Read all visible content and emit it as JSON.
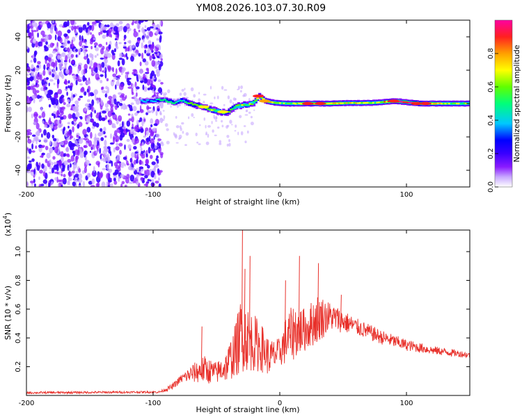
{
  "title": "YM08.2026.103.07.30.R09",
  "colors": {
    "axis": "#000000",
    "snr_line": "#e8302a",
    "colormap": [
      "#ffffff",
      "#c8a8ff",
      "#8a1bff",
      "#3a00ff",
      "#0000ff",
      "#00c8ff",
      "#00ff7a",
      "#60ff00",
      "#ffff00",
      "#ffa000",
      "#ff2020",
      "#ff00a0"
    ]
  },
  "chart_data": [
    {
      "id": "spectrogram",
      "type": "heatmap",
      "xlabel": "Height of straight line (km)",
      "ylabel": "Frequency (Hz)",
      "xlim": [
        -200,
        150
      ],
      "ylim": [
        -50,
        50
      ],
      "xticks": [
        -200,
        -100,
        0,
        100
      ],
      "yticks": [
        -40,
        -20,
        0,
        20,
        40
      ],
      "x_tick_labels": [
        "-200",
        "-100",
        "0",
        "100"
      ],
      "y_tick_labels": [
        "-40",
        "-20",
        "0",
        "20",
        "40"
      ],
      "noise_region_x": [
        -200,
        -93
      ],
      "ridge": [
        {
          "x": -110,
          "f": 1.5,
          "amp": 0.42
        },
        {
          "x": -100,
          "f": 1.8,
          "amp": 0.46
        },
        {
          "x": -92,
          "f": 2.2,
          "amp": 0.52
        },
        {
          "x": -85,
          "f": 0.5,
          "amp": 0.55
        },
        {
          "x": -78,
          "f": 2.0,
          "amp": 0.56
        },
        {
          "x": -72,
          "f": 0.0,
          "amp": 0.6
        },
        {
          "x": -64,
          "f": -1.5,
          "amp": 0.58
        },
        {
          "x": -56,
          "f": -3.5,
          "amp": 0.6
        },
        {
          "x": -48,
          "f": -5.0,
          "amp": 0.62
        },
        {
          "x": -42,
          "f": -5.5,
          "amp": 0.58
        },
        {
          "x": -37,
          "f": -2.0,
          "amp": 0.6
        },
        {
          "x": -30,
          "f": -1.0,
          "amp": 0.62
        },
        {
          "x": -22,
          "f": 0.0,
          "amp": 0.64
        },
        {
          "x": -17,
          "f": 4.5,
          "amp": 0.7
        },
        {
          "x": -12,
          "f": 1.5,
          "amp": 0.66
        },
        {
          "x": -5,
          "f": 0.5,
          "amp": 0.7
        },
        {
          "x": 5,
          "f": 0.0,
          "amp": 0.6
        },
        {
          "x": 20,
          "f": 0.0,
          "amp": 0.82
        },
        {
          "x": 35,
          "f": 0.0,
          "amp": 0.84
        },
        {
          "x": 55,
          "f": 0.3,
          "amp": 0.7
        },
        {
          "x": 75,
          "f": 0.5,
          "amp": 0.66
        },
        {
          "x": 90,
          "f": 1.5,
          "amp": 0.88
        },
        {
          "x": 110,
          "f": 0.0,
          "amp": 0.9
        },
        {
          "x": 130,
          "f": 0.0,
          "amp": 0.68
        },
        {
          "x": 150,
          "f": 0.0,
          "amp": 0.6
        }
      ]
    },
    {
      "id": "colorbar",
      "type": "colorbar",
      "label": "Normalized spectral amplitude",
      "range": [
        0.0,
        1.0
      ],
      "ticks": [
        0.0,
        0.2,
        0.4,
        0.6,
        0.8
      ],
      "tick_labels": [
        "0.0",
        "0.2",
        "0.4",
        "0.6",
        "0.8"
      ]
    },
    {
      "id": "snr",
      "type": "line",
      "xlabel": "Height of straight line (km)",
      "ylabel": "SNR (10 * v/v)",
      "y_multiplier_label": "(x10",
      "y_multiplier_exp": "4",
      "y_multiplier_close": ")",
      "xlim": [
        -200,
        150
      ],
      "ylim": [
        0,
        1.15
      ],
      "xticks": [
        -200,
        -100,
        0,
        100
      ],
      "yticks": [
        0.2,
        0.4,
        0.6,
        0.8,
        1.0
      ],
      "x_tick_labels": [
        "-200",
        "-100",
        "0",
        "100"
      ],
      "y_tick_labels": [
        "0.2",
        "0.4",
        "0.6",
        "0.8",
        "1.0"
      ],
      "envelope": [
        {
          "x": -200,
          "base": 0.015,
          "amp": 0.015
        },
        {
          "x": -95,
          "base": 0.02,
          "amp": 0.015
        },
        {
          "x": -85,
          "base": 0.05,
          "amp": 0.04
        },
        {
          "x": -78,
          "base": 0.1,
          "amp": 0.06
        },
        {
          "x": -70,
          "base": 0.12,
          "amp": 0.12
        },
        {
          "x": -60,
          "base": 0.13,
          "amp": 0.2
        },
        {
          "x": -50,
          "base": 0.12,
          "amp": 0.15
        },
        {
          "x": -42,
          "base": 0.15,
          "amp": 0.22
        },
        {
          "x": -35,
          "base": 0.22,
          "amp": 0.38
        },
        {
          "x": -30,
          "base": 0.3,
          "amp": 0.55
        },
        {
          "x": -25,
          "base": 0.28,
          "amp": 0.45
        },
        {
          "x": -15,
          "base": 0.25,
          "amp": 0.35
        },
        {
          "x": -8,
          "base": 0.2,
          "amp": 0.25
        },
        {
          "x": 0,
          "base": 0.25,
          "amp": 0.2
        },
        {
          "x": 5,
          "base": 0.3,
          "amp": 0.35
        },
        {
          "x": 12,
          "base": 0.35,
          "amp": 0.4
        },
        {
          "x": 20,
          "base": 0.38,
          "amp": 0.3
        },
        {
          "x": 30,
          "base": 0.45,
          "amp": 0.35
        },
        {
          "x": 40,
          "base": 0.5,
          "amp": 0.2
        },
        {
          "x": 60,
          "base": 0.45,
          "amp": 0.12
        },
        {
          "x": 80,
          "base": 0.38,
          "amp": 0.1
        },
        {
          "x": 100,
          "base": 0.33,
          "amp": 0.08
        },
        {
          "x": 120,
          "base": 0.3,
          "amp": 0.06
        },
        {
          "x": 140,
          "base": 0.28,
          "amp": 0.05
        },
        {
          "x": 150,
          "base": 0.27,
          "amp": 0.04
        }
      ],
      "spikes": [
        {
          "x": -30,
          "y": 1.15
        },
        {
          "x": -24,
          "y": 0.97
        },
        {
          "x": -28,
          "y": 0.88
        },
        {
          "x": 15,
          "y": 0.97
        },
        {
          "x": 30,
          "y": 0.92
        },
        {
          "x": 4,
          "y": 0.8
        },
        {
          "x": -62,
          "y": 0.48
        },
        {
          "x": 48,
          "y": 0.7
        }
      ]
    }
  ]
}
